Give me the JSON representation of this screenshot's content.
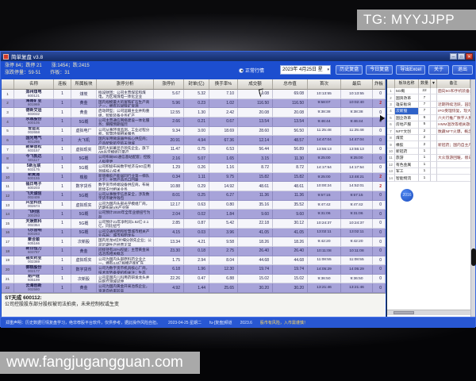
{
  "watermarks": {
    "top_right": "TG: MYYJJPP",
    "bottom_left": "www.fangjugangguan.com"
  },
  "window": {
    "title": "简单复盘 v3.8",
    "controls": {
      "minimize": "─",
      "maximize": "□",
      "close": "✕"
    },
    "info_bar": {
      "line1": "涨停 84；跌停 21　　涨:1454；跌:2415",
      "line2": "涨跌停量：59·51　　炸板：31",
      "market_radio": "正常行情",
      "date": "2023年 4月25日 星",
      "date_dropdown": "▾",
      "buttons": [
        "历史复盘",
        "今日复盘",
        "导出Excel",
        "关于",
        "退出"
      ]
    },
    "table": {
      "columns": [
        "",
        "名称",
        "连板",
        "所属板块",
        "涨停分析",
        "涨停价",
        "封单(亿)",
        "换手率%",
        "成交额",
        "总市值",
        "首次",
        "最后",
        "炸板"
      ],
      "rows": [
        {
          "num": "1",
          "name": "郑州煤电",
          "code": "600121",
          "boards": "1",
          "sector": "煤炭",
          "analysis": "拟设财团；公司主营煤炭和煤电，为区域煤电一体化企业",
          "values": [
            "5.67",
            "5.32",
            "7.10",
            "69.08",
            "69.08",
            "10:13:55",
            "10:13:55",
            "0"
          ]
        },
        {
          "num": "2",
          "name": "海南矿业",
          "code": "601969",
          "boards": "1",
          "sector": "黄金",
          "analysis": "国内规模最大的富铁矿石生产商之一，拥有石碌铁矿资源",
          "values": [
            "5.96",
            "0.23",
            "1.02",
            "116.50",
            "116.50",
            "9:58:07",
            "10:02:40",
            "2"
          ]
        },
        {
          "num": "3",
          "name": "德新交运",
          "code": "603032",
          "boards": "1",
          "sector": "黄金",
          "analysis": "启动转型；公司运输主业并购重组，智能装备业务扩产",
          "values": [
            "12.55",
            "1.30",
            "2.42",
            "20.08",
            "20.08",
            "9:38:38",
            "9:38:38",
            "0"
          ]
        },
        {
          "num": "4",
          "name": "永鼎股份",
          "code": "600105",
          "boards": "1",
          "sector": "5G概",
          "analysis": "公司主营通信网络建设一体化服务；摘帽预期强烈",
          "values": [
            "2.66",
            "0.21",
            "0.67",
            "13.54",
            "13.54",
            "9:46:44",
            "9:46:44",
            "0"
          ]
        },
        {
          "num": "5",
          "name": "雪迪龙",
          "code": "002658",
          "boards": "1",
          "sector": "虚拟电厂",
          "analysis": "公司从事环境监测、工业过程分析，智慧环保相关服务",
          "values": [
            "9.34",
            "3.00",
            "18.69",
            "28.60",
            "56.50",
            "11:25:48",
            "11:25:48",
            "0"
          ]
        },
        {
          "num": "6",
          "name": "国光电气",
          "code": "601286",
          "boards": "1",
          "sector": "大飞机",
          "analysis": "国内军用微波器件核心供应商；产品配套航空航天领域",
          "values": [
            "20.91",
            "4.94",
            "67.36",
            "12.14",
            "48.57",
            "14:47:04",
            "14:47:04",
            "0"
          ]
        },
        {
          "num": "7",
          "name": "新莱智松",
          "code": "603157",
          "boards": "1",
          "sector": "虚拟现实",
          "analysis": "国内大屏幕显示领先企业，旗下AR光学模组已量产",
          "values": [
            "11.47",
            "0.75",
            "6.53",
            "56.44",
            "56.89",
            "13:55:13",
            "13:55:13",
            "0"
          ]
        },
        {
          "num": "8",
          "name": "今飞凯达",
          "code": "601117",
          "boards": "1",
          "sector": "5G概",
          "analysis": "公司布局5G通信基站配套；控股人拟变更",
          "values": [
            "2.16",
            "5.07",
            "1.65",
            "3.15",
            "11.30",
            "9:25:00",
            "9:25:00",
            "0"
          ]
        },
        {
          "num": "9",
          "name": "5新互联",
          "code": "603175",
          "boards": "1",
          "sector": "5G概",
          "analysis": "公司积极布局数字经济与5G应用领域核心技术",
          "values": [
            "1.29",
            "0.26",
            "1.16",
            "8.72",
            "8.72",
            "14:17:54",
            "14:17:54",
            "0"
          ]
        },
        {
          "num": "10",
          "name": "新黄浦",
          "code": "600155",
          "boards": "1",
          "sector": "橡胶",
          "analysis": "新增橡胶产能居同行业第一梯队之下；主营产品出口回暖",
          "values": [
            "0.34",
            "1.11",
            "9.75",
            "15.82",
            "15.82",
            "9:25:00",
            "13:48:21",
            "2"
          ]
        },
        {
          "num": "11",
          "name": "福日电子",
          "code": "600203",
          "boards": "1",
          "sector": "数字货币",
          "analysis": "数字货币终端设备供应商，布局跨境支付相关业务",
          "values": [
            "10.88",
            "0.29",
            "14.92",
            "48.61",
            "48.61",
            "10:00:24",
            "14:52:01",
            "2"
          ]
        },
        {
          "num": "12",
          "name": "飞天诚信",
          "code": "002409",
          "boards": "1",
          "sector": "5G概",
          "analysis": "公司从事数字信息安全，涉及数字货币硬件钱包",
          "values": [
            "8.01",
            "0.25",
            "6.27",
            "11.36",
            "11.36",
            "9:57:15",
            "9:57:15",
            "0"
          ]
        },
        {
          "num": "13",
          "name": "兴业科技",
          "code": "002674",
          "boards": "1",
          "sector": "虚拟现实",
          "analysis": "公司为国内头部光学模组厂商，近期布局VR产业链",
          "values": [
            "12.17",
            "0.63",
            "0.80",
            "35.16",
            "35.52",
            "9:47:42",
            "9:47:42",
            "0"
          ]
        },
        {
          "num": "14",
          "name": "飞利信",
          "code": "300293",
          "boards": "1",
          "sector": "5G概",
          "analysis": "公司预计2020年全年业绩扭亏为盈",
          "values": [
            "2.04",
            "0.02",
            "1.84",
            "9.60",
            "9.60",
            "9:31:06",
            "9:31:06",
            "0"
          ]
        },
        {
          "num": "15",
          "name": "天娱数科",
          "code": "002354",
          "boards": "1",
          "sector": "5G概",
          "analysis": "公司预计21年净利润1.52亿-2.1亿，同比扭亏",
          "values": [
            "2.85",
            "0.87",
            "5.42",
            "22.18",
            "30.12",
            "10:24:37",
            "10:24:37",
            "0"
          ]
        },
        {
          "num": "16",
          "name": "飞乐音响",
          "code": "600283",
          "boards": "1",
          "sector": "5G概",
          "analysis": "公司交通照明和智慧城市相关产业布局；城市照明龙头",
          "values": [
            "4.15",
            "0.03",
            "3.96",
            "41.05",
            "41.05",
            "13:02:11",
            "13:02:11",
            "0"
          ]
        },
        {
          "num": "17",
          "name": "聚合顺",
          "code": "605166",
          "boards": "1",
          "sector": "次新股",
          "analysis": "国内尼龙6切片细分领先企业；公司近期生产经营正常",
          "values": [
            "13.34",
            "4.21",
            "9.58",
            "18.26",
            "18.26",
            "9:42:20",
            "9:42:20",
            "0"
          ]
        },
        {
          "num": "18",
          "name": "新日恒力",
          "code": "603787",
          "boards": "1",
          "sector": "黄金",
          "analysis": "间接持有20%权益；主营黄金采选冶炼相关概念",
          "values": [
            "23.30",
            "0.18",
            "2.75",
            "26.40",
            "26.40",
            "10:11:08",
            "10:11:08",
            "0"
          ]
        },
        {
          "num": "19",
          "name": "福安药业",
          "code": "002369",
          "boards": "1",
          "sector": "虚拟现实",
          "analysis": "公司为国内头部原料药企业之一，拥有4.6亿规模产能扩充",
          "values": [
            "1.75",
            "2.94",
            "8.04",
            "44.68",
            "44.68",
            "11:08:55",
            "11:08:55",
            "0"
          ]
        },
        {
          "num": "20",
          "name": "御银股份",
          "code": "002177",
          "boards": "1",
          "sector": "数字货币",
          "analysis": "公司为数字货币机具核心厂商，技术优势备受机构关注；生态",
          "values": [
            "6.18",
            "1.96",
            "12.30",
            "19.74",
            "19.74",
            "14:05:29",
            "14:05:29",
            "0"
          ]
        },
        {
          "num": "21",
          "name": "葫芦娃",
          "code": "605199",
          "boards": "1",
          "sector": "次新股",
          "analysis": "公司是国内儿科用药研发龙头并向医疗领域延伸",
          "values": [
            "22.26",
            "0.47",
            "6.88",
            "15.02",
            "15.02",
            "9:36:50",
            "9:36:50",
            "0"
          ]
        },
        {
          "num": "22",
          "name": "云海创新",
          "code": "002580",
          "boards": "1",
          "sector": "黄金",
          "analysis": "公司为国内黄金开采冶炼企业，资源自给率较高",
          "values": [
            "4.92",
            "1.44",
            "25.65",
            "30.20",
            "30.20",
            "13:21:46",
            "13:21:46",
            "0"
          ]
        }
      ]
    },
    "sidebar": {
      "columns": {
        "name": "板块名称",
        "count": "数量",
        "sort": "▼",
        "note": "备注"
      },
      "selected_index": 3,
      "badge": "2016",
      "rows": [
        {
          "num": "1",
          "name": "5G概",
          "count": "22",
          "note": "面向5G和手机装备光学仪器与望远镜"
        },
        {
          "num": "2",
          "name": "国资改革",
          "count": "7",
          "note": ""
        },
        {
          "num": "3",
          "name": "雄安板块",
          "count": "7",
          "note": "近期持续活跃，园区确定概念近期受关注"
        },
        {
          "num": "4",
          "name": "次新股",
          "count": "7",
          "note": "IPO受理恢复，现大批注册获批上市"
        },
        {
          "num": "5",
          "name": "国企改革",
          "count": "6",
          "note": "六大行推广数字人民币应用；发改委推进"
        },
        {
          "num": "6",
          "name": "房地产服",
          "count": "5",
          "note": "HMM混改等相关题材发酵"
        },
        {
          "num": "7",
          "name": "NFT文创",
          "count": "2",
          "note": "数藏NFT火爆，概念股连续领涨"
        },
        {
          "num": "8",
          "name": "煤炭",
          "count": "2",
          "note": ""
        },
        {
          "num": "9",
          "name": "橡胶",
          "count": "2",
          "note": "新冠药；国内自主产权仍不确定"
        },
        {
          "num": "10",
          "name": "新冠药",
          "count": "1",
          "note": ""
        },
        {
          "num": "11",
          "name": "旅游",
          "count": "1",
          "note": "大众旅游回暖，假日出行态势稳增长"
        },
        {
          "num": "12",
          "name": "有色金属",
          "count": "1",
          "note": ""
        },
        {
          "num": "13",
          "name": "军工",
          "count": "1",
          "note": ""
        },
        {
          "num": "14",
          "name": "智能物流",
          "count": "1",
          "note": ""
        }
      ]
    },
    "detail": {
      "title": "ST天成 600112:",
      "body": "公司控股股东部分股权被司法拍卖，未来控制权或生变"
    },
    "status_bar": {
      "disclaimer": "郑重声明：历史数据行情复盘学习，绝非荐股平台软件，仅供参考，据此操作风险自担。",
      "date": "2023-04-25 星期二",
      "channel": "fu-[复盘]频道",
      "version": "2023.6",
      "warning": "股市有风险，入市需谨慎！"
    }
  },
  "colors": {
    "row_alt": "#a7a3d9",
    "info_bar": "#1c4ecf",
    "selected_cell": "#2e62c8",
    "close_button": "#b53020",
    "badge": "#1e4fc0"
  }
}
